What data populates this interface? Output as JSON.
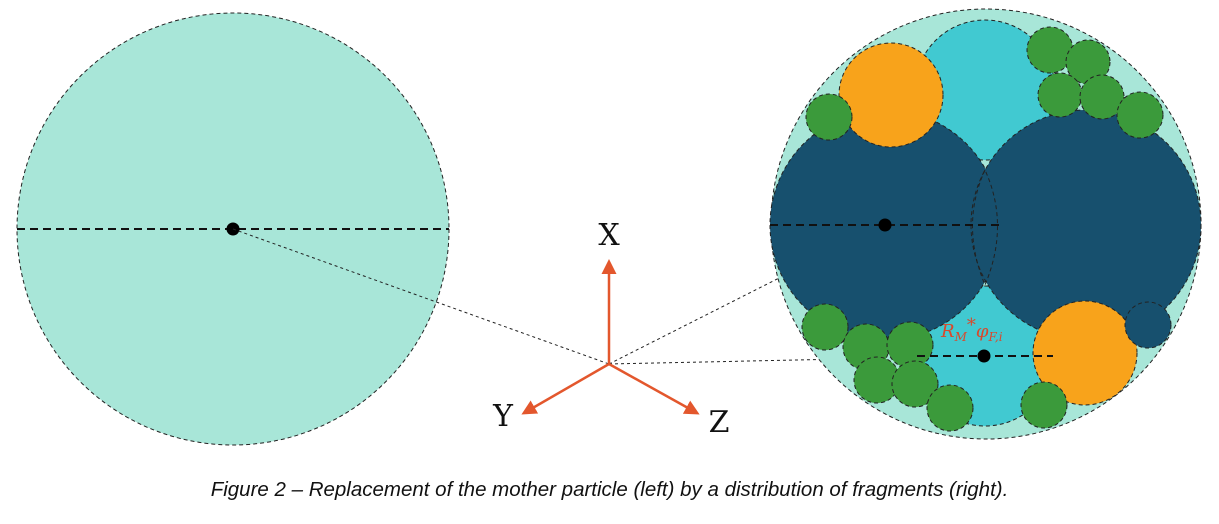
{
  "axes": {
    "x": "X",
    "y": "Y",
    "z": "Z"
  },
  "label_radius": {
    "base": "R",
    "sub1": "M",
    "star": "*",
    "phi": "φ",
    "sub2": "F,i"
  },
  "caption": "Figure 2 – Replacement of the mother particle (left) by a distribution of fragments (right).",
  "colors": {
    "mother": "#a8e6d8",
    "large_fragment": "#17506e",
    "medium_fragment": "#41c9d1",
    "orange_fragment": "#f8a31b",
    "small_fragment": "#3b9a3b",
    "small_fragment_alt": "#2f8f35",
    "axis_arrow": "#e3572d",
    "outline": "#222222"
  }
}
